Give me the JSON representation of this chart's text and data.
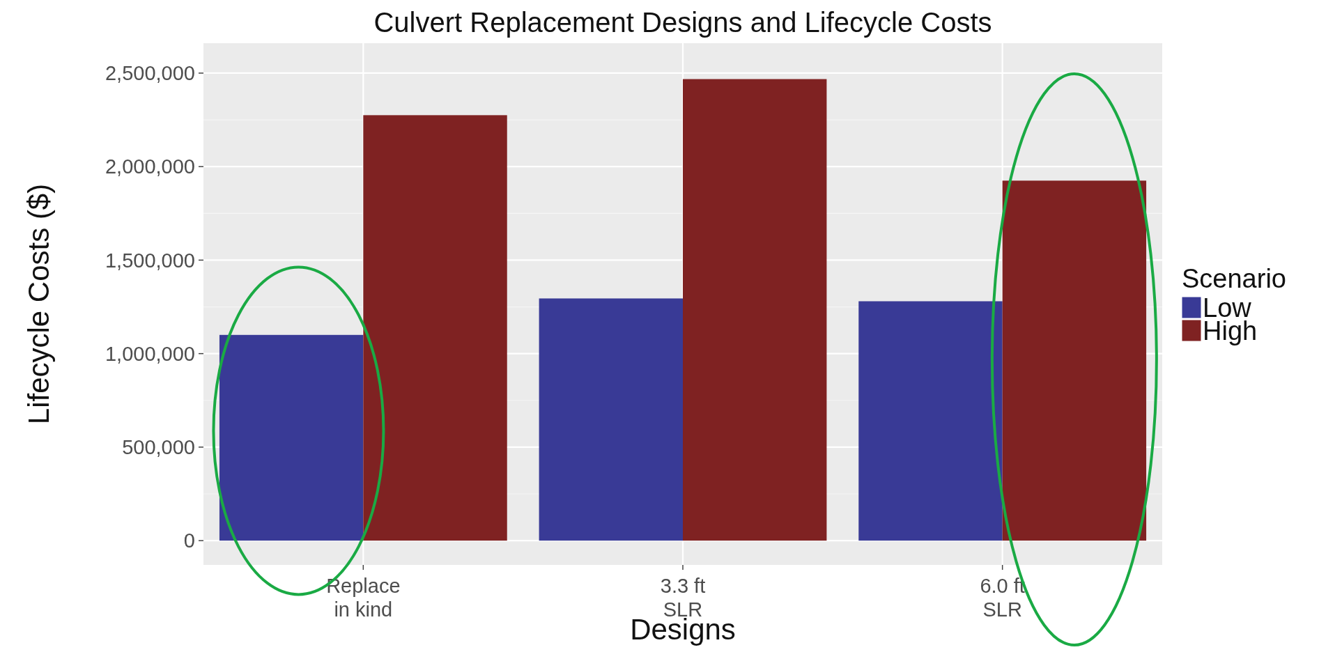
{
  "chart_data": {
    "type": "bar",
    "title": "Culvert Replacement Designs and Lifecycle Costs",
    "xlabel": "Designs",
    "ylabel": "Lifecycle Costs ($)",
    "legend_title": "Scenario",
    "categories": [
      "Replace\nin kind",
      "3.3 ft\nSLR",
      "6.0 ft\nSLR"
    ],
    "series": [
      {
        "name": "Low",
        "color": "#393a96",
        "values": [
          1100000,
          1295000,
          1280000
        ]
      },
      {
        "name": "High",
        "color": "#7f2222",
        "values": [
          2275000,
          2468000,
          1925000
        ]
      }
    ],
    "ylim": [
      -130000,
      2660000
    ],
    "yticks": [
      {
        "value": 0,
        "label": "0"
      },
      {
        "value": 500000,
        "label": "500,000"
      },
      {
        "value": 1000000,
        "label": "1,000,000"
      },
      {
        "value": 1500000,
        "label": "1,500,000"
      },
      {
        "value": 2000000,
        "label": "2,000,000"
      },
      {
        "value": 2500000,
        "label": "2,500,000"
      }
    ],
    "grid": true,
    "legend": "right"
  }
}
